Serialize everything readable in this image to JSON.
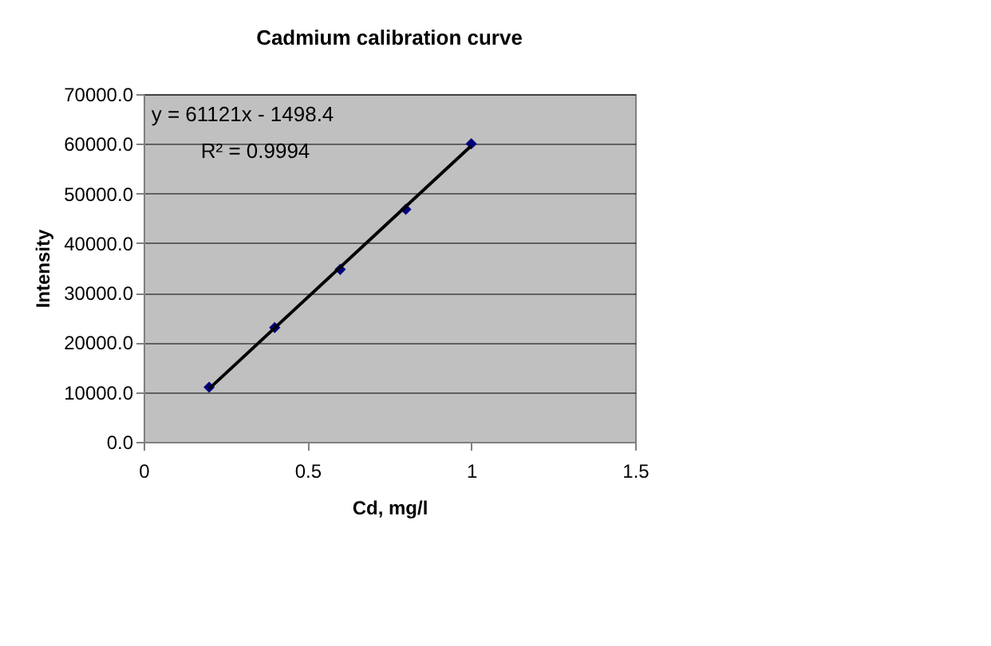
{
  "chart_data": {
    "type": "scatter",
    "title": "Cadmium calibration curve",
    "xlabel": "Cd, mg/l",
    "ylabel": "Intensity",
    "series": [
      {
        "color": "#000080",
        "x": [
          0.2,
          0.4,
          0.6,
          0.8,
          1.0
        ],
        "values": [
          11000,
          23000,
          34700,
          46800,
          60000
        ],
        "marker": "diamond"
      },
      {
        "type": "line",
        "color": "#000000",
        "x": [
          0.2,
          1.0
        ],
        "values": [
          10700,
          59600
        ],
        "marker": "none",
        "line_style": "solid"
      }
    ],
    "annotations": [
      "y = 61121x - 1498.4",
      "R² = 0.9994"
    ],
    "xlim": [
      0,
      1.5
    ],
    "xticks": [
      0,
      0.5,
      1,
      1.5
    ],
    "ylim": [
      0,
      70000
    ],
    "yticks": [
      {
        "value": 0,
        "label": "0.0"
      },
      {
        "value": 10000,
        "label": "10000.0"
      },
      {
        "value": 20000,
        "label": "20000.0"
      },
      {
        "value": 30000,
        "label": "30000.0"
      },
      {
        "value": 40000,
        "label": "40000.0"
      },
      {
        "value": 50000,
        "label": "50000.0"
      },
      {
        "value": 60000,
        "label": "60000.0"
      },
      {
        "value": 70000,
        "label": "70000.0"
      }
    ],
    "grid": "y"
  }
}
